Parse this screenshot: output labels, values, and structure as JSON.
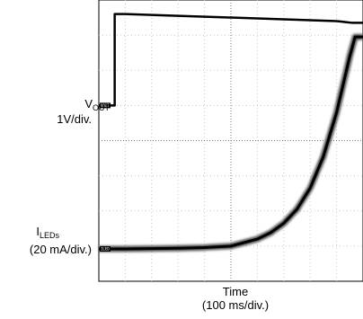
{
  "chart_data": {
    "type": "line",
    "title": "",
    "grid": true,
    "xlabel": "Time",
    "xlabel_scale": "(100 ms/div.)",
    "x_divisions": 10,
    "y_divisions": 8,
    "series": [
      {
        "name_main": "V",
        "name_sub": "OUT",
        "scale": "1V/div.",
        "color": "#000000",
        "x": [
          0.0,
          0.6,
          0.6,
          1.0,
          3.0,
          5.0,
          7.0,
          9.0,
          9.6,
          10.0
        ],
        "y": [
          5.0,
          5.0,
          7.6,
          7.6,
          7.55,
          7.5,
          7.45,
          7.4,
          7.35,
          7.35
        ]
      },
      {
        "name_main": "I",
        "name_sub": "LEDs",
        "scale": "(20 mA/div.)",
        "color": "#000000",
        "x": [
          0.0,
          1.0,
          2.0,
          3.0,
          4.0,
          5.0,
          6.0,
          6.5,
          7.0,
          7.5,
          8.0,
          8.5,
          9.0,
          9.5,
          9.7,
          10.0
        ],
        "y": [
          0.92,
          0.92,
          0.93,
          0.94,
          0.96,
          1.0,
          1.2,
          1.38,
          1.65,
          2.05,
          2.65,
          3.55,
          4.8,
          6.4,
          6.95,
          6.95
        ]
      }
    ],
    "channel_markers": [
      "VOUT",
      "ILED"
    ]
  },
  "labels": {
    "vout_main": "V",
    "vout_sub": "OUT",
    "vout_scale": "1V/div.",
    "iled_main": "I",
    "iled_sub": "LEDs",
    "iled_scale": "(20 mA/div.)",
    "time": "Time",
    "time_scale": "(100 ms/div.)"
  }
}
